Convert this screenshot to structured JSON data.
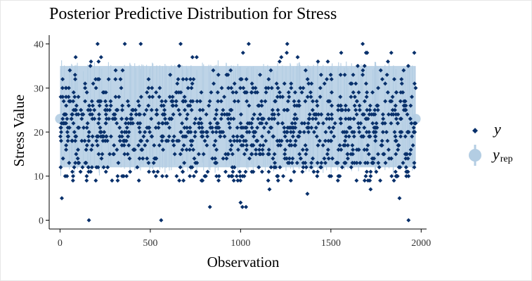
{
  "chart_data": {
    "type": "scatter",
    "title": "Posterior Predictive Distribution for Stress",
    "xlabel": "Observation",
    "ylabel": "Stress Value",
    "xlim": [
      -60,
      2030
    ],
    "ylim": [
      -2,
      42
    ],
    "x_ticks": [
      0,
      500,
      1000,
      1500,
      2000
    ],
    "y_ticks": [
      0,
      10,
      20,
      30,
      40
    ],
    "n_observations": 1970,
    "series": [
      {
        "name": "y",
        "kind": "points",
        "color": "#08306b",
        "outliers": [
          {
            "x": 10,
            "y": 5
          },
          {
            "x": 160,
            "y": 0
          },
          {
            "x": 560,
            "y": 0
          },
          {
            "x": 1000,
            "y": 4
          },
          {
            "x": 1010,
            "y": 3
          },
          {
            "x": 1030,
            "y": 3
          },
          {
            "x": 830,
            "y": 3
          },
          {
            "x": 1370,
            "y": 6
          },
          {
            "x": 1880,
            "y": 5
          },
          {
            "x": 1930,
            "y": 0
          },
          {
            "x": 1720,
            "y": 7
          },
          {
            "x": 1160,
            "y": 7
          }
        ]
      },
      {
        "name": "y_rep",
        "label_main": "y",
        "label_sub": "rep",
        "kind": "band",
        "color": "#b3cde3",
        "lower": 12,
        "upper": 35,
        "mean": 23
      }
    ],
    "legend": {
      "position": "right"
    }
  }
}
